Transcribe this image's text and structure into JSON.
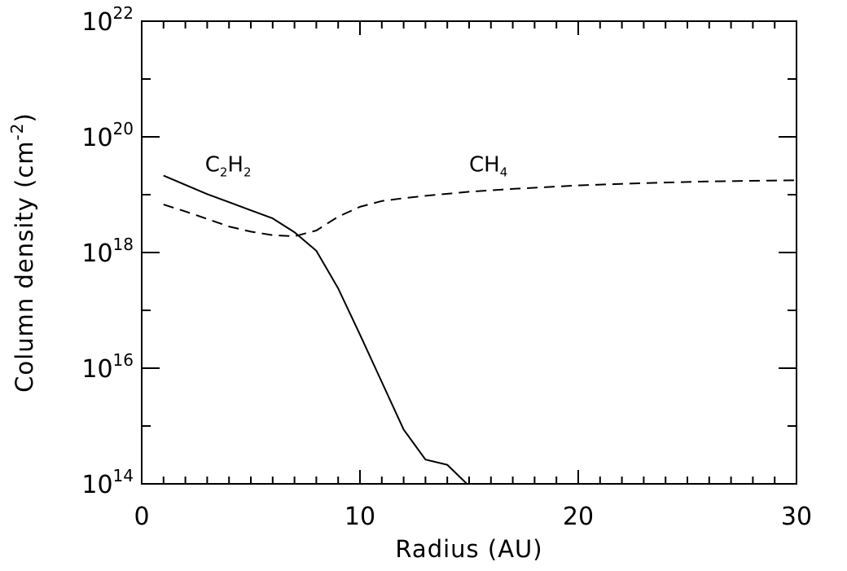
{
  "chart_data": {
    "type": "line",
    "xlabel": "Radius (AU)",
    "ylabel_main": "Column density (cm",
    "ylabel_sup": "-2",
    "ylabel_close": ")",
    "xlim": [
      0,
      30
    ],
    "ylim_log10": [
      14,
      22
    ],
    "y_scale": "log",
    "grid": false,
    "x_ticks": [
      {
        "value": 0,
        "label": "0"
      },
      {
        "value": 10,
        "label": "10"
      },
      {
        "value": 20,
        "label": "20"
      },
      {
        "value": 30,
        "label": "30"
      }
    ],
    "y_ticks": [
      {
        "exp": 14,
        "base": "10",
        "sup": "14"
      },
      {
        "exp": 16,
        "base": "10",
        "sup": "16"
      },
      {
        "exp": 18,
        "base": "10",
        "sup": "18"
      },
      {
        "exp": 20,
        "base": "10",
        "sup": "20"
      },
      {
        "exp": 22,
        "base": "10",
        "sup": "22"
      }
    ],
    "series": [
      {
        "label_main": "C",
        "label_parts": [
          {
            "t": "C",
            "sub": false
          },
          {
            "t": "2",
            "sub": true
          },
          {
            "t": "H",
            "sub": false
          },
          {
            "t": "2",
            "sub": true
          }
        ],
        "style": "solid",
        "label_at": {
          "x": 2.9,
          "log10y": 19.4
        },
        "x": [
          1,
          2,
          3,
          4,
          5,
          6,
          7,
          8,
          9,
          10,
          11,
          12,
          13,
          14,
          14.9
        ],
        "log10y": [
          19.33,
          19.17,
          19.01,
          18.87,
          18.73,
          18.59,
          18.35,
          18.03,
          17.38,
          16.58,
          15.76,
          14.94,
          14.42,
          14.33,
          14.0
        ]
      },
      {
        "label_parts": [
          {
            "t": "CH",
            "sub": false
          },
          {
            "t": "4",
            "sub": true
          }
        ],
        "style": "dashed",
        "label_at": {
          "x": 15.0,
          "log10y": 19.4
        },
        "x": [
          1,
          2,
          3,
          4,
          5,
          6,
          7,
          8,
          9,
          10,
          11,
          12,
          13,
          15,
          17,
          20,
          23,
          26,
          30
        ],
        "log10y": [
          18.83,
          18.71,
          18.58,
          18.45,
          18.36,
          18.3,
          18.28,
          18.38,
          18.62,
          18.79,
          18.89,
          18.94,
          18.98,
          19.05,
          19.1,
          19.16,
          19.2,
          19.23,
          19.25
        ]
      }
    ]
  }
}
